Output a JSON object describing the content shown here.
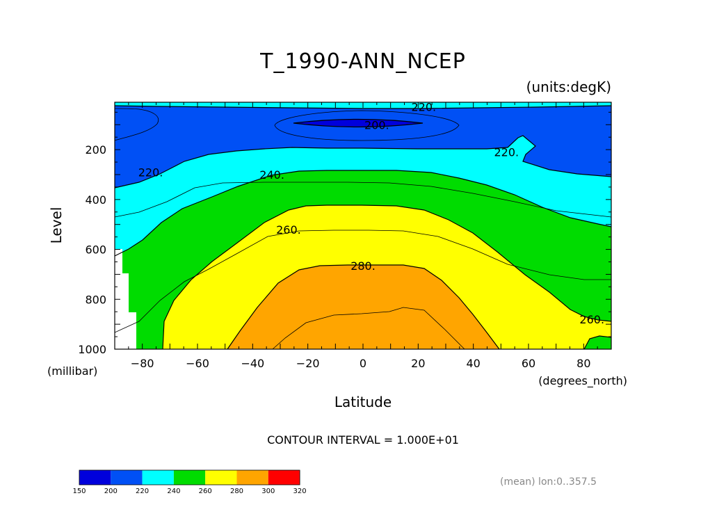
{
  "chart_data": {
    "type": "heatmap",
    "title": "T_1990-ANN_NCEP",
    "units_label": "(units:degK)",
    "xlabel": "Latitude",
    "ylabel": "Level",
    "x_units_label": "(degrees_north)",
    "y_units_label": "(millibar)",
    "xlim": [
      -90,
      90
    ],
    "ylim": [
      1000,
      10
    ],
    "x_ticks": [
      -80,
      -60,
      -40,
      -20,
      0,
      20,
      40,
      60,
      80
    ],
    "y_ticks": [
      200,
      400,
      600,
      800,
      1000
    ],
    "contour_labels": [
      {
        "text": "220.",
        "lat": 22,
        "level": 28
      },
      {
        "text": "200.",
        "lat": 5,
        "level": 100
      },
      {
        "text": "220.",
        "lat": 52,
        "level": 210
      },
      {
        "text": "220.",
        "lat": -77,
        "level": 290
      },
      {
        "text": "240.",
        "lat": -33,
        "level": 300
      },
      {
        "text": "260.",
        "lat": -27,
        "level": 520
      },
      {
        "text": "280.",
        "lat": 0,
        "level": 665
      },
      {
        "text": "260.",
        "lat": 83,
        "level": 880
      }
    ],
    "contour_interval_text": "CONTOUR INTERVAL = 1.000E+01",
    "note": "(mean) lon:0..357.5",
    "colorbar": {
      "boundaries": [
        "150",
        "200",
        "220",
        "240",
        "260",
        "280",
        "300",
        "320"
      ],
      "colors": [
        "#0000dc",
        "#0050f5",
        "#00ffff",
        "#00dc00",
        "#ffff00",
        "#ffa500",
        "#ff0000"
      ]
    },
    "missing_color": "#ffffff"
  }
}
